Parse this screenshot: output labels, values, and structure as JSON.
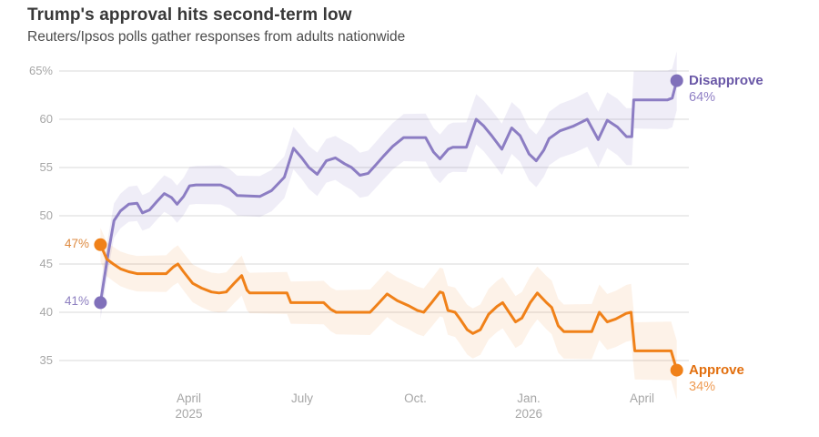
{
  "header": {
    "title": "Trump's approval hits second-term low",
    "subtitle": "Reuters/Ipsos polls gather responses from adults nationwide"
  },
  "chart_data": {
    "type": "line",
    "title": "Trump's approval hits second-term low",
    "subtitle": "Reuters/Ipsos polls gather responses from adults nationwide",
    "grid": true,
    "legend_position": "end-of-line",
    "x_axis": {
      "unit": "months since Jan 2025",
      "range": [
        0.4,
        16.2
      ],
      "ticks": [
        {
          "m": 3,
          "line1": "April",
          "line2": "2025"
        },
        {
          "m": 6,
          "line1": "July",
          "line2": ""
        },
        {
          "m": 9,
          "line1": "Oct.",
          "line2": ""
        },
        {
          "m": 12,
          "line1": "Jan.",
          "line2": "2026"
        },
        {
          "m": 15,
          "line1": "April",
          "line2": ""
        }
      ]
    },
    "y_axis": {
      "unit": "percent",
      "min": 35,
      "max": 65,
      "ticks": [
        {
          "v": 65,
          "label": "65%"
        },
        {
          "v": 60,
          "label": "60"
        },
        {
          "v": 55,
          "label": "55"
        },
        {
          "v": 50,
          "label": "50"
        },
        {
          "v": 45,
          "label": "45"
        },
        {
          "v": 40,
          "label": "40"
        },
        {
          "v": 35,
          "label": "35"
        }
      ]
    },
    "series": [
      {
        "name": "Disapprove",
        "start_label": "41%",
        "end_label": "64%",
        "start_value": 41,
        "end_value": 64,
        "color": "#8c7dc3",
        "dot_color": "#8070ba",
        "name_color": "#6a58a7",
        "value_color": "#9080c5",
        "start_label_color": "#8d7fc0",
        "band_color": "rgba(140,124,195,0.14)",
        "points": [
          [
            0.66,
            41
          ],
          [
            0.86,
            46
          ],
          [
            1.02,
            49.5
          ],
          [
            1.19,
            50.5
          ],
          [
            1.41,
            51.2
          ],
          [
            1.63,
            51.3
          ],
          [
            1.77,
            50.3
          ],
          [
            1.96,
            50.6
          ],
          [
            2.16,
            51.5
          ],
          [
            2.35,
            52.3
          ],
          [
            2.54,
            51.9
          ],
          [
            2.69,
            51.2
          ],
          [
            2.86,
            52
          ],
          [
            3.02,
            53.1
          ],
          [
            3.19,
            53.2
          ],
          [
            3.84,
            53.2
          ],
          [
            4.08,
            52.8
          ],
          [
            4.28,
            52.1
          ],
          [
            4.88,
            52
          ],
          [
            5.19,
            52.6
          ],
          [
            5.53,
            54
          ],
          [
            5.77,
            57
          ],
          [
            5.99,
            56
          ],
          [
            6.18,
            55
          ],
          [
            6.4,
            54.3
          ],
          [
            6.64,
            55.7
          ],
          [
            6.88,
            56
          ],
          [
            7.12,
            55.4
          ],
          [
            7.31,
            55
          ],
          [
            7.53,
            54.2
          ],
          [
            7.75,
            54.4
          ],
          [
            7.96,
            55.3
          ],
          [
            8.16,
            56.2
          ],
          [
            8.4,
            57.2
          ],
          [
            8.69,
            58.1
          ],
          [
            9.27,
            58.1
          ],
          [
            9.48,
            56.6
          ],
          [
            9.65,
            55.9
          ],
          [
            9.87,
            56.9
          ],
          [
            9.99,
            57.1
          ],
          [
            10.35,
            57.1
          ],
          [
            10.61,
            60
          ],
          [
            10.81,
            59.3
          ],
          [
            11.02,
            58.3
          ],
          [
            11.29,
            56.9
          ],
          [
            11.55,
            59.1
          ],
          [
            11.77,
            58.3
          ],
          [
            12.01,
            56.4
          ],
          [
            12.2,
            55.7
          ],
          [
            12.4,
            56.8
          ],
          [
            12.54,
            58
          ],
          [
            12.83,
            58.8
          ],
          [
            13.19,
            59.3
          ],
          [
            13.55,
            60
          ],
          [
            13.84,
            57.9
          ],
          [
            14.08,
            59.9
          ],
          [
            14.35,
            59.2
          ],
          [
            14.59,
            58.2
          ],
          [
            14.73,
            58.2
          ],
          [
            14.78,
            62
          ],
          [
            15.67,
            62
          ],
          [
            15.8,
            62.2
          ],
          [
            15.92,
            64
          ]
        ]
      },
      {
        "name": "Approve",
        "start_label": "47%",
        "end_label": "34%",
        "start_value": 47,
        "end_value": 34,
        "color": "#f08119",
        "dot_color": "#f08119",
        "name_color": "#e26f0e",
        "value_color": "#ef9c55",
        "start_label_color": "#de8a40",
        "band_color": "rgba(240,129,25,0.10)",
        "points": [
          [
            0.66,
            47
          ],
          [
            0.83,
            45.5
          ],
          [
            1.0,
            45
          ],
          [
            1.19,
            44.5
          ],
          [
            1.41,
            44.2
          ],
          [
            1.63,
            44
          ],
          [
            2.4,
            44
          ],
          [
            2.59,
            44.7
          ],
          [
            2.71,
            45
          ],
          [
            2.86,
            44.2
          ],
          [
            3.1,
            43
          ],
          [
            3.34,
            42.5
          ],
          [
            3.6,
            42.1
          ],
          [
            3.8,
            42
          ],
          [
            3.99,
            42.1
          ],
          [
            4.2,
            43
          ],
          [
            4.4,
            43.8
          ],
          [
            4.54,
            42.3
          ],
          [
            4.61,
            42
          ],
          [
            5.6,
            42
          ],
          [
            5.7,
            41
          ],
          [
            6.57,
            41
          ],
          [
            6.76,
            40.3
          ],
          [
            6.9,
            40
          ],
          [
            7.8,
            40
          ],
          [
            8.04,
            41
          ],
          [
            8.25,
            41.9
          ],
          [
            8.52,
            41.2
          ],
          [
            8.81,
            40.7
          ],
          [
            9.05,
            40.2
          ],
          [
            9.22,
            40
          ],
          [
            9.43,
            41
          ],
          [
            9.65,
            42.1
          ],
          [
            9.73,
            42
          ],
          [
            9.86,
            40.2
          ],
          [
            10.05,
            40
          ],
          [
            10.18,
            39.3
          ],
          [
            10.37,
            38.2
          ],
          [
            10.52,
            37.8
          ],
          [
            10.72,
            38.2
          ],
          [
            10.94,
            39.8
          ],
          [
            11.16,
            40.6
          ],
          [
            11.31,
            41
          ],
          [
            11.48,
            40
          ],
          [
            11.65,
            39
          ],
          [
            11.82,
            39.4
          ],
          [
            12.04,
            41
          ],
          [
            12.23,
            42
          ],
          [
            12.47,
            41
          ],
          [
            12.61,
            40.5
          ],
          [
            12.78,
            38.6
          ],
          [
            12.93,
            38
          ],
          [
            13.67,
            38
          ],
          [
            13.87,
            40
          ],
          [
            14.08,
            39
          ],
          [
            14.3,
            39.3
          ],
          [
            14.59,
            39.9
          ],
          [
            14.71,
            40
          ],
          [
            14.81,
            36
          ],
          [
            15.77,
            36
          ],
          [
            15.92,
            34
          ]
        ]
      }
    ]
  }
}
